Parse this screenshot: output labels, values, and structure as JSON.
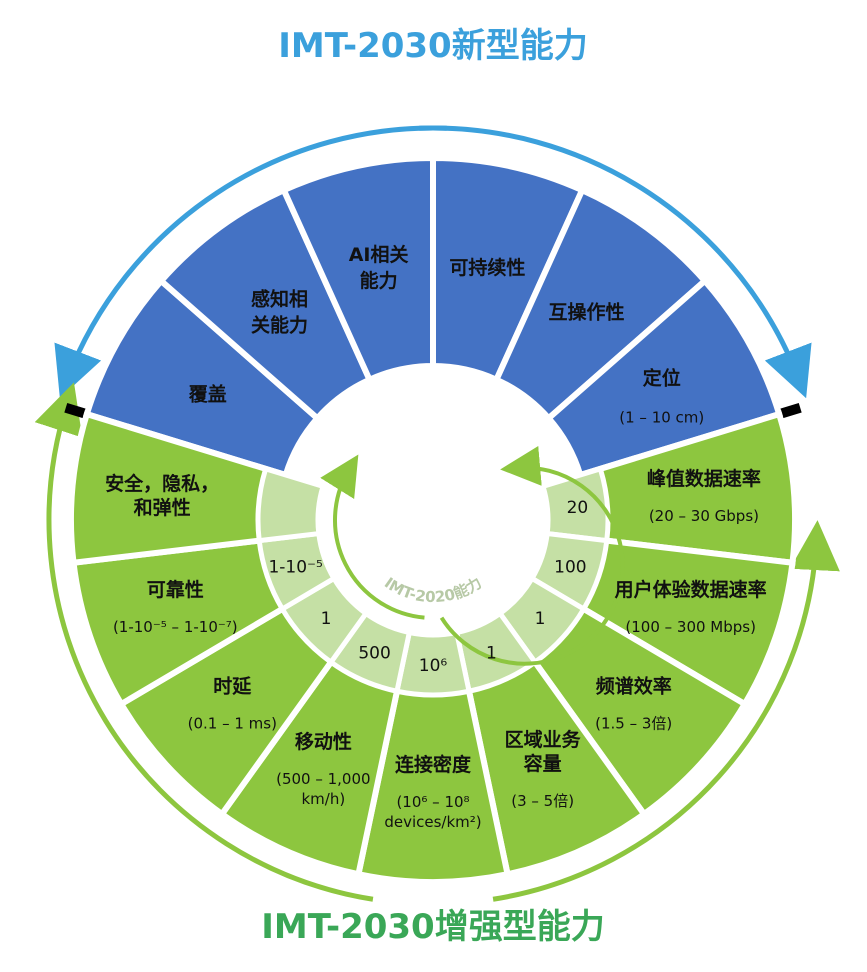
{
  "titles": {
    "top": "IMT-2030新型能力",
    "bottom": "IMT-2030增强型能力",
    "center": "IMT-2020能力"
  },
  "colors": {
    "new_capability": "#4472c4",
    "enhanced_capability": "#8dc63f",
    "imt2020_ring": "#c5e0a5",
    "top_arrow": "#3ba0dc",
    "bottom_arrow": "#8dc63f",
    "top_title": "#3ba0dc",
    "bottom_title": "#3aa757"
  },
  "new_capabilities": [
    {
      "lines": [
        "覆盖"
      ],
      "sub": []
    },
    {
      "lines": [
        "感知相",
        "关能力"
      ],
      "sub": []
    },
    {
      "lines": [
        "AI相关",
        "能力"
      ],
      "sub": []
    },
    {
      "lines": [
        "可持续性"
      ],
      "sub": []
    },
    {
      "lines": [
        "互操作性"
      ],
      "sub": []
    },
    {
      "lines": [
        "定位"
      ],
      "sub": [
        "(1 – 10 cm)"
      ]
    }
  ],
  "enhanced_capabilities": [
    {
      "lines": [
        "峰值数据速率"
      ],
      "sub": [
        "(20 – 30 Gbps)"
      ],
      "imt2020": "20"
    },
    {
      "lines": [
        "用户体验数据速率"
      ],
      "sub": [
        "(100 – 300 Mbps)"
      ],
      "imt2020": "100"
    },
    {
      "lines": [
        "频谱效率"
      ],
      "sub": [
        "(1.5 – 3倍)"
      ],
      "imt2020": "1"
    },
    {
      "lines": [
        "区域业务",
        "容量"
      ],
      "sub": [
        "(3 – 5倍)"
      ],
      "imt2020": "1"
    },
    {
      "lines": [
        "连接密度"
      ],
      "sub": [
        "(10⁶ – 10⁸",
        "devices/km²)"
      ],
      "imt2020": "10⁶"
    },
    {
      "lines": [
        "移动性"
      ],
      "sub": [
        "(500 – 1,000",
        "km/h)"
      ],
      "imt2020": "500"
    },
    {
      "lines": [
        "时延"
      ],
      "sub": [
        "(0.1 – 1 ms)"
      ],
      "imt2020": "1"
    },
    {
      "lines": [
        "可靠性"
      ],
      "sub": [
        "(1-10⁻⁵ – 1-10⁻⁷)"
      ],
      "imt2020": "1-10⁻⁵"
    },
    {
      "lines": [
        "安全，隐私，",
        "和弹性"
      ],
      "sub": [],
      "imt2020": ""
    }
  ]
}
